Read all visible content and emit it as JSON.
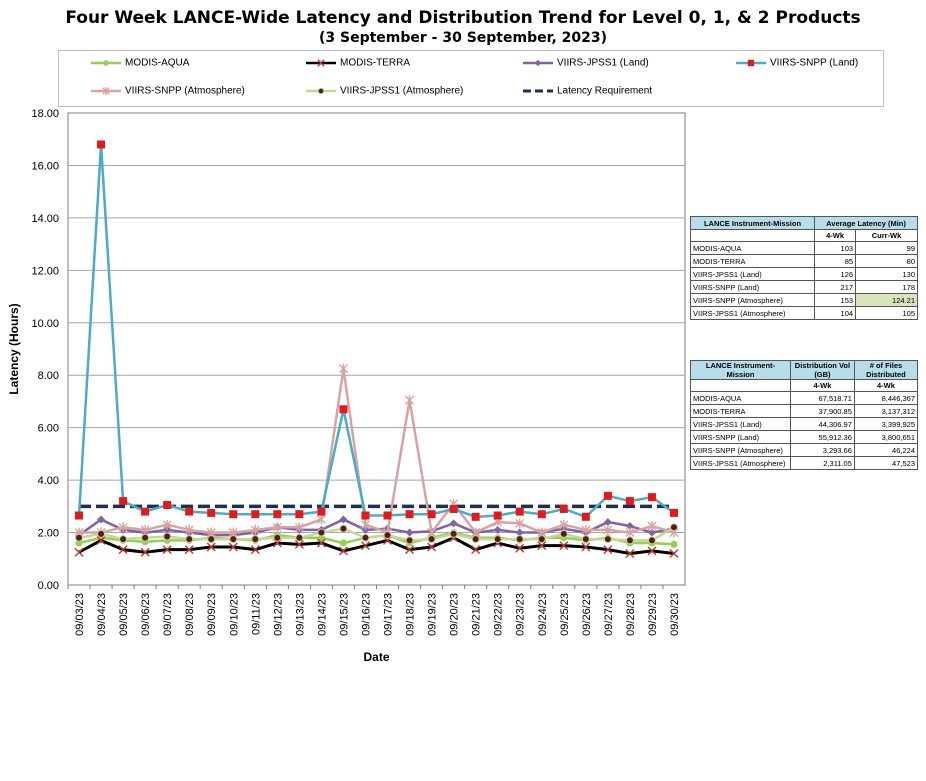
{
  "title": "Four Week LANCE-Wide Latency and Distribution Trend for Level 0, 1, & 2 Products",
  "subtitle": "(3 September  -  30 September, 2023)",
  "chart_data": {
    "type": "line",
    "xlabel": "Date",
    "ylabel": "Latency (Hours)",
    "ylim": [
      0,
      18
    ],
    "yticks": [
      "0.00",
      "2.00",
      "4.00",
      "6.00",
      "8.00",
      "10.00",
      "12.00",
      "14.00",
      "16.00",
      "18.00"
    ],
    "grid": true,
    "legend_position": "top",
    "categories": [
      "09/03/23",
      "09/04/23",
      "09/05/23",
      "09/06/23",
      "09/07/23",
      "09/08/23",
      "09/09/23",
      "09/10/23",
      "09/11/23",
      "09/12/23",
      "09/13/23",
      "09/14/23",
      "09/15/23",
      "09/16/23",
      "09/17/23",
      "09/18/23",
      "09/19/23",
      "09/20/23",
      "09/21/23",
      "09/22/23",
      "09/23/23",
      "09/24/23",
      "09/25/23",
      "09/26/23",
      "09/27/23",
      "09/28/23",
      "09/29/23",
      "09/30/23"
    ],
    "series": [
      {
        "name": "MODIS-AQUA",
        "color": "#92d050",
        "marker": "circle",
        "values": [
          1.6,
          1.8,
          1.7,
          1.65,
          1.7,
          1.7,
          1.8,
          1.75,
          1.7,
          1.9,
          1.8,
          1.8,
          1.6,
          1.8,
          1.9,
          1.6,
          1.8,
          2.0,
          1.8,
          1.8,
          1.7,
          1.8,
          1.8,
          1.7,
          1.8,
          1.6,
          1.6,
          1.55
        ]
      },
      {
        "name": "MODIS-TERRA",
        "color": "#000000",
        "marker": "x",
        "values": [
          1.25,
          1.7,
          1.35,
          1.25,
          1.35,
          1.35,
          1.45,
          1.45,
          1.35,
          1.6,
          1.55,
          1.6,
          1.3,
          1.5,
          1.7,
          1.35,
          1.45,
          1.8,
          1.35,
          1.6,
          1.4,
          1.5,
          1.5,
          1.45,
          1.35,
          1.2,
          1.3,
          1.2
        ]
      },
      {
        "name": "VIIRS-JPSS1 (Land)",
        "color": "#8064a2",
        "marker": "diamond",
        "values": [
          1.9,
          2.5,
          2.1,
          2.0,
          2.1,
          2.0,
          1.9,
          1.9,
          2.0,
          2.2,
          2.1,
          2.1,
          2.5,
          2.1,
          2.15,
          2.0,
          2.05,
          2.35,
          2.0,
          2.1,
          2.0,
          2.0,
          2.15,
          2.0,
          2.4,
          2.25,
          2.0,
          2.15
        ]
      },
      {
        "name": "VIIRS-SNPP (Land)",
        "color": "#4bacc6",
        "marker": "square",
        "values": [
          2.65,
          16.8,
          3.2,
          2.8,
          3.05,
          2.8,
          2.75,
          2.7,
          2.7,
          2.7,
          2.7,
          2.8,
          6.7,
          2.65,
          2.65,
          2.7,
          2.7,
          2.9,
          2.6,
          2.65,
          2.8,
          2.7,
          2.9,
          2.6,
          3.4,
          3.2,
          3.35,
          2.75
        ]
      },
      {
        "name": "VIIRS-SNPP (Atmosphere)",
        "color": "#d9a3a3",
        "marker": "star",
        "values": [
          2.0,
          2.0,
          2.2,
          2.1,
          2.3,
          2.1,
          2.0,
          2.0,
          2.1,
          2.2,
          2.2,
          2.5,
          8.25,
          2.3,
          2.0,
          7.05,
          2.0,
          3.1,
          2.0,
          2.4,
          2.35,
          2.0,
          2.3,
          2.1,
          2.1,
          2.0,
          2.25,
          2.0
        ]
      },
      {
        "name": "VIIRS-JPSS1 (Atmosphere)",
        "color": "#c3d69b",
        "marker": "dot",
        "values": [
          1.8,
          1.95,
          1.75,
          1.8,
          1.85,
          1.75,
          1.75,
          1.75,
          1.75,
          1.8,
          1.8,
          2.0,
          2.15,
          1.8,
          1.9,
          1.7,
          1.75,
          1.95,
          1.75,
          1.75,
          1.75,
          1.75,
          1.95,
          1.75,
          1.75,
          1.7,
          1.7,
          2.2
        ]
      },
      {
        "name": "Latency Requirement",
        "color": "#1f2f4f",
        "marker": "none",
        "values": [
          3,
          3,
          3,
          3,
          3,
          3,
          3,
          3,
          3,
          3,
          3,
          3,
          3,
          3,
          3,
          3,
          3,
          3,
          3,
          3,
          3,
          3,
          3,
          3,
          3,
          3,
          3,
          3
        ]
      }
    ]
  },
  "table1": {
    "header_col1": "LANCE Instrument-Mission",
    "header_col2": "Average Latency (Min)",
    "sub_col1": "4-Wk",
    "sub_col2": "Curr-Wk",
    "rows": [
      {
        "name": "MODIS-AQUA",
        "a": "103",
        "b": "99"
      },
      {
        "name": "MODIS-TERRA",
        "a": "85",
        "b": "80"
      },
      {
        "name": "VIIRS-JPSS1 (Land)",
        "a": "126",
        "b": "130"
      },
      {
        "name": "VIIRS-SNPP (Land)",
        "a": "217",
        "b": "178"
      },
      {
        "name": "VIIRS-SNPP (Atmosphere)",
        "a": "153",
        "b": "124.21"
      },
      {
        "name": "VIIRS-JPSS1 (Atmosphere)",
        "a": "104",
        "b": "105"
      }
    ]
  },
  "table2": {
    "header_col1": "LANCE Instrument-Mission",
    "header_col2": "Distribution Vol (GB)",
    "header_col3": "# of Files Distributed",
    "sub_col1": "4-Wk",
    "sub_col2": "4-Wk",
    "rows": [
      {
        "name": "MODIS-AQUA",
        "a": "67,518.71",
        "b": "8,446,367"
      },
      {
        "name": "MODIS-TERRA",
        "a": "37,900.85",
        "b": "3,137,312"
      },
      {
        "name": "VIIRS-JPSS1 (Land)",
        "a": "44,306.97",
        "b": "3,399,925"
      },
      {
        "name": "VIIRS-SNPP (Land)",
        "a": "55,912.36",
        "b": "3,800,651"
      },
      {
        "name": "VIIRS-SNPP (Atmosphere)",
        "a": "3,293.66",
        "b": "46,224"
      },
      {
        "name": "VIIRS-JPSS1 (Atmosphere)",
        "a": "2,311.05",
        "b": "47,523"
      }
    ]
  }
}
